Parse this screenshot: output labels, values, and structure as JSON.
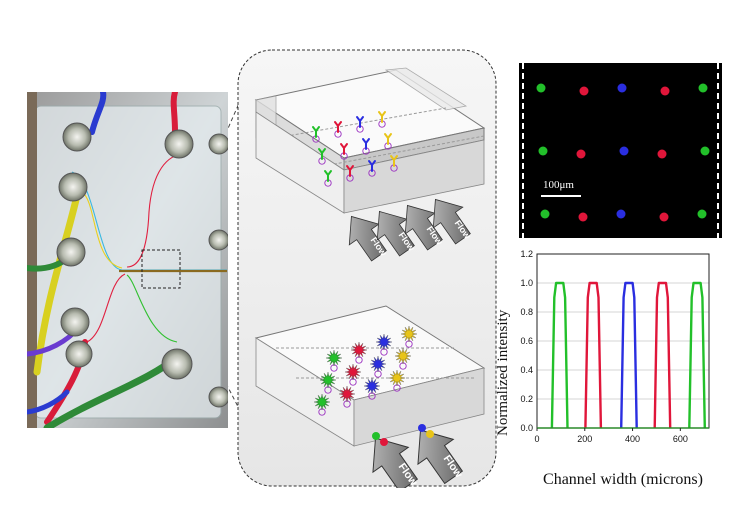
{
  "flow_label": "Flow",
  "scale_bar_label": "100μm",
  "colors": {
    "green": "#22c02a",
    "red": "#e0163a",
    "blue": "#2a2ee0",
    "yellow": "#e8c418",
    "purple": "#9a2fc0"
  },
  "chart_data": {
    "type": "line",
    "title": "",
    "xlabel": "Channel width (microns)",
    "ylabel": "Normalized intensity",
    "xlim": [
      0,
      720
    ],
    "ylim": [
      0,
      1.2
    ],
    "x_ticks": [
      0,
      200,
      400,
      600
    ],
    "y_ticks": [
      0.0,
      0.2,
      0.4,
      0.6,
      0.8,
      1.0,
      1.2
    ],
    "y_tick_labels": [
      "0.0",
      "0.2",
      "0.4",
      "0.6",
      "0.8",
      "1.0",
      "1.2"
    ],
    "grid": true,
    "peak_width_microns": 50,
    "series": [
      {
        "color": "green",
        "peak_center": 95,
        "peak_value": 1.0
      },
      {
        "color": "red",
        "peak_center": 235,
        "peak_value": 1.0
      },
      {
        "color": "blue",
        "peak_center": 385,
        "peak_value": 1.0
      },
      {
        "color": "red",
        "peak_center": 525,
        "peak_value": 1.0
      },
      {
        "color": "green",
        "peak_center": 670,
        "peak_value": 1.0
      }
    ]
  },
  "micrograph": {
    "rows": 3,
    "columns": [
      "green",
      "red",
      "blue",
      "red",
      "green"
    ]
  }
}
